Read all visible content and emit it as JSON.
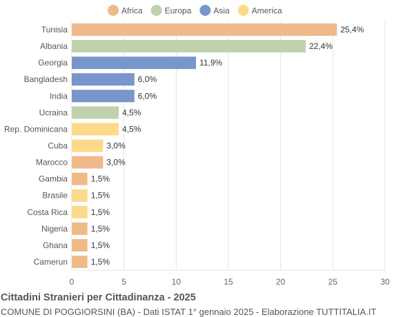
{
  "chart_data": {
    "type": "bar",
    "orientation": "horizontal",
    "title": "Cittadini Stranieri per Cittadinanza - 2025",
    "subtitle": "COMUNE DI POGGIORSINI (BA) - Dati ISTAT 1° gennaio 2025 - Elaborazione TUTTITALIA.IT",
    "legend": {
      "position": "top",
      "items": [
        {
          "name": "Africa",
          "color": "#f0b98a"
        },
        {
          "name": "Europa",
          "color": "#c0d1ab"
        },
        {
          "name": "Asia",
          "color": "#7896cc"
        },
        {
          "name": "America",
          "color": "#fdd98a"
        }
      ]
    },
    "categories": [
      "Tunisia",
      "Albania",
      "Georgia",
      "Bangladesh",
      "India",
      "Ucraina",
      "Rep. Dominicana",
      "Cuba",
      "Marocco",
      "Gambia",
      "Brasile",
      "Costa Rica",
      "Nigeria",
      "Ghana",
      "Camerun"
    ],
    "values": [
      25.4,
      22.4,
      11.9,
      6.0,
      6.0,
      4.5,
      4.5,
      3.0,
      3.0,
      1.5,
      1.5,
      1.5,
      1.5,
      1.5,
      1.5
    ],
    "labels": [
      "25,4%",
      "22,4%",
      "11,9%",
      "6,0%",
      "6,0%",
      "4,5%",
      "4,5%",
      "3,0%",
      "3,0%",
      "1,5%",
      "1,5%",
      "1,5%",
      "1,5%",
      "1,5%",
      "1,5%"
    ],
    "groups": [
      "Africa",
      "Europa",
      "Asia",
      "Asia",
      "Asia",
      "Europa",
      "America",
      "America",
      "Africa",
      "Africa",
      "America",
      "America",
      "Africa",
      "Africa",
      "Africa"
    ],
    "xlim": [
      0,
      30
    ],
    "xticks": [
      "0",
      "5",
      "10",
      "15",
      "20",
      "25",
      "30"
    ],
    "grid": true
  }
}
